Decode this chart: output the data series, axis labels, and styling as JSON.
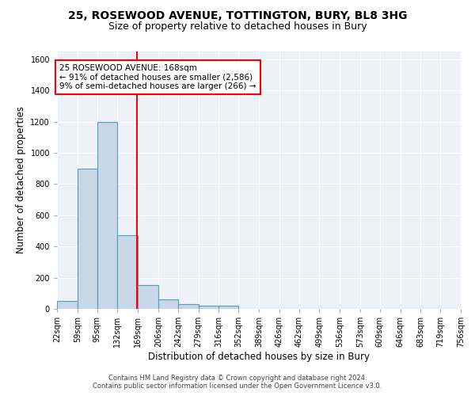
{
  "title1": "25, ROSEWOOD AVENUE, TOTTINGTON, BURY, BL8 3HG",
  "title2": "Size of property relative to detached houses in Bury",
  "xlabel": "Distribution of detached houses by size in Bury",
  "ylabel": "Number of detached properties",
  "bar_color": "#c8d8e8",
  "bar_edge_color": "#5a9aba",
  "background_color": "#eef2f8",
  "grid_color": "white",
  "bin_labels": [
    "22sqm",
    "59sqm",
    "95sqm",
    "132sqm",
    "169sqm",
    "206sqm",
    "242sqm",
    "279sqm",
    "316sqm",
    "352sqm",
    "389sqm",
    "426sqm",
    "462sqm",
    "499sqm",
    "536sqm",
    "573sqm",
    "609sqm",
    "646sqm",
    "683sqm",
    "719sqm",
    "756sqm"
  ],
  "bin_edges": [
    22,
    59,
    95,
    132,
    169,
    206,
    242,
    279,
    316,
    352,
    389,
    426,
    462,
    499,
    536,
    573,
    609,
    646,
    683,
    719,
    756
  ],
  "bar_heights": [
    50,
    900,
    1200,
    470,
    150,
    60,
    30,
    20,
    20,
    0,
    0,
    0,
    0,
    0,
    0,
    0,
    0,
    0,
    0,
    0
  ],
  "red_line_x": 168,
  "ylim": [
    0,
    1650
  ],
  "yticks": [
    0,
    200,
    400,
    600,
    800,
    1000,
    1200,
    1400,
    1600
  ],
  "annotation_text": "25 ROSEWOOD AVENUE: 168sqm\n← 91% of detached houses are smaller (2,586)\n9% of semi-detached houses are larger (266) →",
  "footer1": "Contains HM Land Registry data © Crown copyright and database right 2024.",
  "footer2": "Contains public sector information licensed under the Open Government Licence v3.0.",
  "title1_fontsize": 10,
  "title2_fontsize": 9,
  "xlabel_fontsize": 8.5,
  "ylabel_fontsize": 8.5,
  "tick_fontsize": 7,
  "annotation_fontsize": 7.5,
  "footer_fontsize": 6
}
